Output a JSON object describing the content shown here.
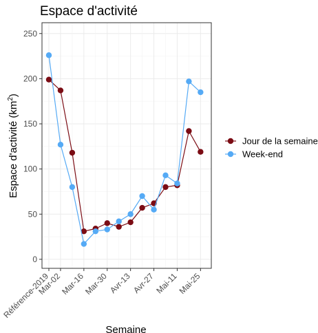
{
  "chart_data": {
    "type": "line",
    "title": "Espace d'activité",
    "xlabel": "Semaine",
    "ylabel": "Espace d'activité (km²)",
    "ylabel_base": "Espace d'activité (km",
    "ylabel_sup": "2",
    "ylabel_end": ")",
    "ylim": [
      -10,
      262
    ],
    "yticks": [
      0,
      50,
      100,
      150,
      200,
      250
    ],
    "x_ticks": [
      "Référence-2019",
      "Mar-02",
      "Mar-16",
      "Mar-30",
      "Avr-13",
      "Avr-27",
      "Mai-11",
      "Mai-25"
    ],
    "x_tick_positions": [
      0,
      1,
      3,
      5,
      7,
      9,
      11,
      13
    ],
    "x_count": 14,
    "grid": true,
    "legend_position": "right",
    "series": [
      {
        "name": "Jour de la semaine",
        "color": "#7b0c14",
        "values": [
          199,
          187,
          118,
          31,
          34,
          40,
          36,
          41,
          57,
          62,
          80,
          82,
          142,
          119
        ]
      },
      {
        "name": "Week-end",
        "color": "#55aaf5",
        "values": [
          226,
          127,
          80,
          17,
          31,
          33,
          42,
          50,
          70,
          55,
          93,
          84,
          197,
          185
        ]
      }
    ]
  }
}
